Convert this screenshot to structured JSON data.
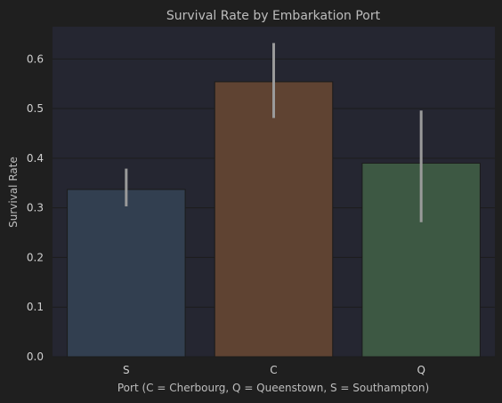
{
  "chart_data": {
    "type": "bar",
    "title": "Survival Rate by Embarkation Port",
    "xlabel": "Port (C = Cherbourg, Q = Queenstown, S = Southampton)",
    "ylabel": "Survival Rate",
    "categories": [
      "S",
      "C",
      "Q"
    ],
    "values": [
      0.337,
      0.554,
      0.39
    ],
    "error_low": [
      0.303,
      0.481,
      0.271
    ],
    "error_high": [
      0.379,
      0.632,
      0.496
    ],
    "ylim": [
      0,
      0.665
    ],
    "yticks": [
      0.0,
      0.1,
      0.2,
      0.3,
      0.4,
      0.5,
      0.6
    ],
    "ytick_labels": [
      "0.0",
      "0.1",
      "0.2",
      "0.3",
      "0.4",
      "0.5",
      "0.6"
    ],
    "grid": true,
    "colors": {
      "figure_bg": "#1f1f1f",
      "plot_bg": "#252631",
      "grid": "#1c1c1c",
      "bars": [
        "#323f50",
        "#5f4332",
        "#3d5843"
      ],
      "bar_edge": "#1b1b1b",
      "error_bar": "#9a9a9a"
    }
  }
}
